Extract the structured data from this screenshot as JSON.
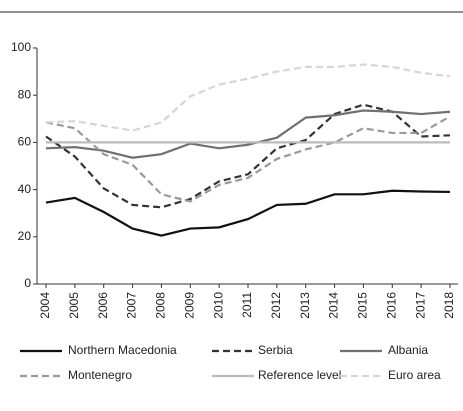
{
  "chart_data": {
    "type": "line",
    "categories": [
      "2004",
      "2005",
      "2006",
      "2007",
      "2008",
      "2009",
      "2010",
      "2011",
      "2012",
      "2013",
      "2014",
      "2015",
      "2016",
      "2017",
      "2018"
    ],
    "ylim": [
      0,
      100
    ],
    "yticks": [
      0,
      20,
      40,
      60,
      80,
      100
    ],
    "series": [
      {
        "name": "Northern Macedonia",
        "color": "#111111",
        "style": "solid",
        "values": [
          34.5,
          36.5,
          30.5,
          23.5,
          20.5,
          23.5,
          24,
          27.5,
          33.5,
          34,
          38,
          38,
          39.5,
          39.2,
          39
        ]
      },
      {
        "name": "Serbia",
        "color": "#333333",
        "style": "dashed",
        "values": [
          62.5,
          54,
          40.5,
          33.5,
          32.5,
          36,
          43.5,
          46.5,
          57.5,
          61,
          72,
          76,
          73,
          62.5,
          63
        ]
      },
      {
        "name": "Albania",
        "color": "#707070",
        "style": "solid",
        "values": [
          57.5,
          58,
          56.5,
          53.5,
          55,
          59.5,
          57.5,
          59,
          62,
          70.5,
          71.5,
          73.5,
          73,
          72,
          73
        ]
      },
      {
        "name": "Montenegro",
        "color": "#9a9a9a",
        "style": "dashed",
        "values": [
          68.5,
          66,
          55,
          50.5,
          38,
          35,
          42,
          45,
          53,
          57,
          60,
          66,
          64,
          64,
          71
        ]
      },
      {
        "name": "Reference level",
        "color": "#bbbbbb",
        "style": "solid",
        "values": [
          60,
          60,
          60,
          60,
          60,
          60,
          60,
          60,
          60,
          60,
          60,
          60,
          60,
          60,
          60
        ]
      },
      {
        "name": "Euro area",
        "color": "#d6d6d6",
        "style": "dashed",
        "values": [
          68.5,
          69,
          67,
          65,
          68.5,
          79.5,
          84.5,
          87,
          90,
          92,
          92,
          93,
          92,
          89.5,
          88
        ]
      }
    ]
  }
}
